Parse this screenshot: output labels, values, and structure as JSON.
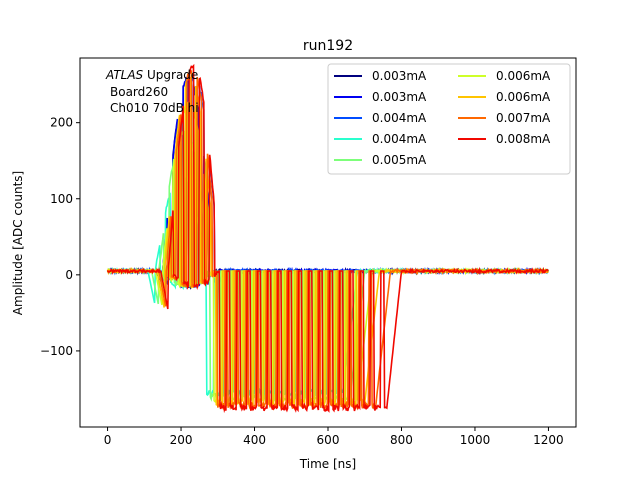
{
  "chart_data": {
    "type": "line",
    "title": "run192",
    "xlabel": "Time [ns]",
    "ylabel": "Amplitude [ADC counts]",
    "xlim": [
      -75,
      1275
    ],
    "ylim": [
      -200,
      285
    ],
    "xticks": [
      0,
      200,
      400,
      600,
      800,
      1000,
      1200
    ],
    "yticks": [
      -100,
      0,
      100,
      200
    ],
    "grid": false,
    "legend_placement": "top-right",
    "legend_columns": 2,
    "annotation": {
      "line1_italic": "ATLAS",
      "line1_rest": " Upgrade",
      "line2": "Board260",
      "line3": "Ch010 70dB hi"
    },
    "series": [
      {
        "name": "0.003mA",
        "color": "#00007f",
        "pulse_start": 150,
        "pos_peak": 255,
        "neg_peak": -55,
        "pulse_end": 255
      },
      {
        "name": "0.003mA",
        "color": "#0000f1",
        "pulse_start": 150,
        "pos_peak": 255,
        "neg_peak": -55,
        "pulse_end": 260
      },
      {
        "name": "0.004mA",
        "color": "#004cff",
        "pulse_start": 165,
        "pos_peak": 255,
        "neg_peak": -60,
        "pulse_end": 275
      },
      {
        "name": "0.004mA",
        "color": "#29ffce",
        "pulse_start": 130,
        "pos_peak": 130,
        "neg_peak": -155,
        "pulse_end": 640
      },
      {
        "name": "0.005mA",
        "color": "#7dff7a",
        "pulse_start": 140,
        "pos_peak": 185,
        "neg_peak": -160,
        "pulse_end": 660
      },
      {
        "name": "0.006mA",
        "color": "#ceff29",
        "pulse_start": 150,
        "pos_peak": 220,
        "neg_peak": -165,
        "pulse_end": 680
      },
      {
        "name": "0.006mA",
        "color": "#ffc400",
        "pulse_start": 155,
        "pos_peak": 255,
        "neg_peak": -168,
        "pulse_end": 700
      },
      {
        "name": "0.007mA",
        "color": "#ff6800",
        "pulse_start": 160,
        "pos_peak": 265,
        "neg_peak": -172,
        "pulse_end": 730
      },
      {
        "name": "0.008mA",
        "color": "#f10800",
        "pulse_start": 165,
        "pos_peak": 270,
        "neg_peak": -175,
        "pulse_end": 760
      }
    ]
  }
}
